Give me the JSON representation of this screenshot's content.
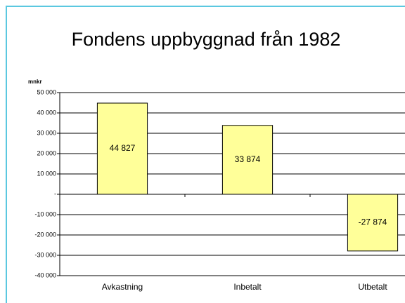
{
  "chart_data": {
    "type": "bar",
    "title": "Fondens uppbyggnad från 1982",
    "y_label": "mnkr",
    "categories": [
      "Avkastning",
      "Inbetalt",
      "Utbetalt"
    ],
    "values": [
      44827,
      33874,
      -27874
    ],
    "value_labels": [
      "44 827",
      "33 874",
      "-27 874"
    ],
    "color": "#ffff99",
    "ylim": [
      -40000,
      50000
    ],
    "yticks": [
      {
        "value": 50000,
        "label": "50 000"
      },
      {
        "value": 40000,
        "label": "40 000"
      },
      {
        "value": 30000,
        "label": "30 000"
      },
      {
        "value": 20000,
        "label": "20 000"
      },
      {
        "value": 10000,
        "label": "10 000"
      },
      {
        "value": 0,
        "label": "-"
      },
      {
        "value": -10000,
        "label": "-10 000"
      },
      {
        "value": -20000,
        "label": "-20 000"
      },
      {
        "value": -30000,
        "label": "-30 000"
      },
      {
        "value": -40000,
        "label": "-40 000"
      }
    ],
    "grid": true
  }
}
